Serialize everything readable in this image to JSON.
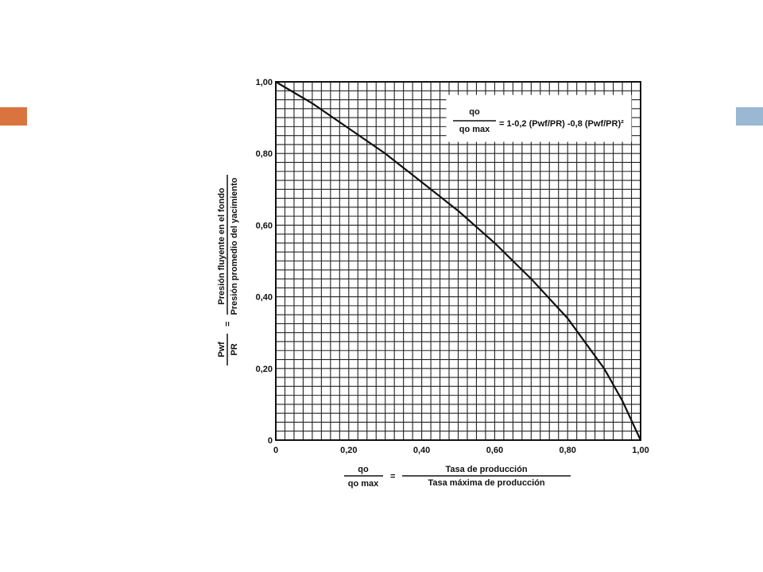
{
  "slide": {
    "accent_left_color": "#d9743f",
    "accent_right_color": "#9ab7d3"
  },
  "chart_data": {
    "type": "line",
    "xlim": [
      0,
      1.0
    ],
    "ylim": [
      0,
      1.0
    ],
    "grid": true,
    "x_tick_labels": [
      "0",
      "0,20",
      "0,40",
      "0,60",
      "0,80",
      "1,00"
    ],
    "y_tick_labels": [
      "0",
      "0,20",
      "0,40",
      "0,60",
      "0,80",
      "1,00"
    ],
    "series": [
      {
        "x": [
          0,
          0.1,
          0.2,
          0.3,
          0.4,
          0.5,
          0.6,
          0.7,
          0.8,
          0.85,
          0.9,
          0.95,
          1.0
        ],
        "y": [
          1.0,
          0.94,
          0.87,
          0.8,
          0.72,
          0.64,
          0.55,
          0.45,
          0.34,
          0.27,
          0.2,
          0.11,
          0.0
        ]
      }
    ],
    "xlabel": {
      "lhs_num": "qo",
      "lhs_den": "qo max",
      "rhs_num": "Tasa de producción",
      "rhs_den": "Tasa máxima de producción"
    },
    "ylabel": {
      "lhs_num": "Pwf",
      "lhs_den": "PR",
      "rhs_num": "Presión fluyente en el fondo",
      "rhs_den": "Presión promedio del yacimiento"
    },
    "equation": {
      "lhs_num": "qo",
      "lhs_den": "qo max",
      "text": "= 1-0,2 (Pwf/PR) -0,8 (Pwf/PR)²"
    }
  }
}
